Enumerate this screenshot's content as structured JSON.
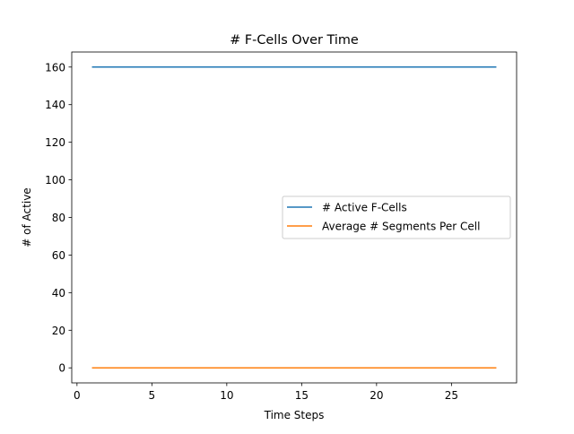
{
  "chart_data": {
    "type": "line",
    "title": "# F-Cells Over Time",
    "xlabel": "Time Steps",
    "ylabel": "# of Active",
    "xlim": [
      -0.35,
      29.35
    ],
    "ylim": [
      -8,
      168
    ],
    "xticks": [
      0,
      5,
      10,
      15,
      20,
      25
    ],
    "yticks": [
      0,
      20,
      40,
      60,
      80,
      100,
      120,
      140,
      160
    ],
    "grid": false,
    "legend_position": "center-right",
    "x": [
      1,
      2,
      3,
      4,
      5,
      6,
      7,
      8,
      9,
      10,
      11,
      12,
      13,
      14,
      15,
      16,
      17,
      18,
      19,
      20,
      21,
      22,
      23,
      24,
      25,
      26,
      27,
      28
    ],
    "series": [
      {
        "name": "# Active F-Cells",
        "color": "#1f77b4",
        "values": [
          160,
          160,
          160,
          160,
          160,
          160,
          160,
          160,
          160,
          160,
          160,
          160,
          160,
          160,
          160,
          160,
          160,
          160,
          160,
          160,
          160,
          160,
          160,
          160,
          160,
          160,
          160,
          160
        ]
      },
      {
        "name": "Average # Segments Per Cell",
        "color": "#ff7f0e",
        "values": [
          0,
          0,
          0,
          0,
          0,
          0,
          0,
          0,
          0,
          0,
          0,
          0,
          0,
          0,
          0,
          0,
          0,
          0,
          0,
          0,
          0,
          0,
          0,
          0,
          0,
          0,
          0,
          0
        ]
      }
    ]
  }
}
